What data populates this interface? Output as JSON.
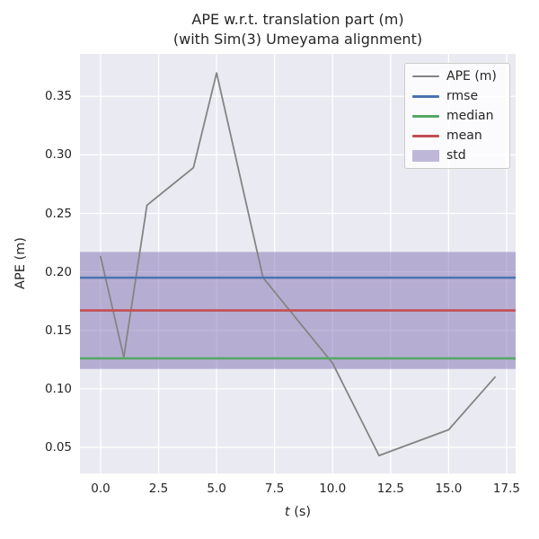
{
  "figure": {
    "title_line1": "APE w.r.t. translation part (m)",
    "title_line2": "(with Sim(3) Umeyama alignment)",
    "ylabel": "APE (m)",
    "xlabel_italic": "t",
    "xlabel_unit": "(s)"
  },
  "chart_data": {
    "type": "line",
    "title": "APE w.r.t. translation part (m)\n(with Sim(3) Umeyama alignment)",
    "xlabel": "t (s)",
    "ylabel": "APE (m)",
    "grid": true,
    "background": "#EAEAF2",
    "gridcolor": "#FFFFFF",
    "legend_position": "upper right",
    "xlim": [
      -0.89,
      17.89
    ],
    "ylim": [
      0.0277,
      0.3863
    ],
    "xticks": [
      0.0,
      2.5,
      5.0,
      7.5,
      10.0,
      12.5,
      15.0,
      17.5
    ],
    "yticks": [
      0.05,
      0.1,
      0.15,
      0.2,
      0.25,
      0.3,
      0.35
    ],
    "xtick_labels": [
      "0.0",
      "2.5",
      "5.0",
      "7.5",
      "10.0",
      "12.5",
      "15.0",
      "17.5"
    ],
    "ytick_labels": [
      "0.05",
      "0.10",
      "0.15",
      "0.20",
      "0.25",
      "0.30",
      "0.35"
    ],
    "series": [
      {
        "key": "ape",
        "name": "APE (m)",
        "type": "line",
        "color": "#848484",
        "lw": 1.8,
        "x": [
          0,
          1,
          2,
          3,
          4,
          5,
          7,
          10,
          12,
          15,
          17
        ],
        "y": [
          0.213,
          0.127,
          0.257,
          0.273,
          0.289,
          0.37,
          0.195,
          0.122,
          0.043,
          0.065,
          0.11
        ]
      },
      {
        "key": "rmse",
        "name": "rmse",
        "type": "hline",
        "color": "#4C72B0",
        "lw": 2.6,
        "value": 0.195
      },
      {
        "key": "median",
        "name": "median",
        "type": "hline",
        "color": "#55A868",
        "lw": 2.6,
        "value": 0.126
      },
      {
        "key": "mean",
        "name": "mean",
        "type": "hline",
        "color": "#C44E52",
        "lw": 2.6,
        "value": 0.167
      },
      {
        "key": "std",
        "name": "std",
        "type": "band",
        "color": "#8172B2",
        "opacity": 0.5,
        "center": 0.167,
        "halfwidth": 0.05,
        "ymin": 0.117,
        "ymax": 0.217
      }
    ],
    "stats": {
      "rmse": 0.195,
      "mean": 0.167,
      "median": 0.126,
      "std": 0.05
    }
  },
  "legend": {
    "entries": [
      {
        "key": "ape",
        "label": "APE (m)",
        "swatch": "line",
        "color": "#848484",
        "lw": 2
      },
      {
        "key": "rmse",
        "label": "rmse",
        "swatch": "line",
        "color": "#4C72B0",
        "lw": 3
      },
      {
        "key": "median",
        "label": "median",
        "swatch": "line",
        "color": "#55A868",
        "lw": 3
      },
      {
        "key": "mean",
        "label": "mean",
        "swatch": "line",
        "color": "#C44E52",
        "lw": 3
      },
      {
        "key": "std",
        "label": "std",
        "swatch": "patch",
        "color": "#BFB7D8"
      }
    ]
  }
}
